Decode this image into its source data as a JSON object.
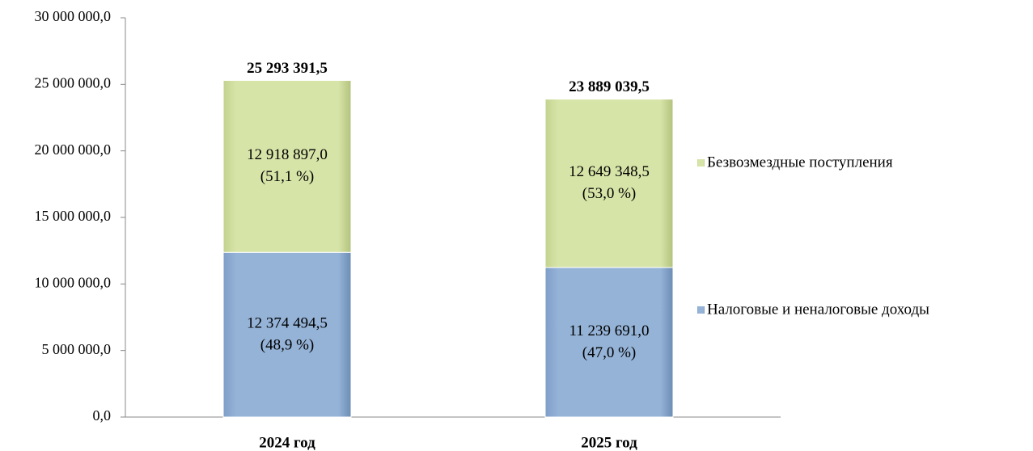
{
  "chart_data": {
    "type": "stacked_bar",
    "categories": [
      "2024 год",
      "2025 год"
    ],
    "series": [
      {
        "name": "Налоговые и неналоговые доходы",
        "color": "#95b3d7",
        "values": [
          12374494.5,
          11239691.0
        ],
        "value_labels": [
          "12 374 494,5",
          "11 239 691,0"
        ],
        "shares": [
          48.9,
          47.0
        ],
        "share_labels": [
          "(48,9 %)",
          "(47,0 %)"
        ]
      },
      {
        "name": "Безвозмездные поступления",
        "color": "#d7e4a8",
        "values": [
          12918897.0,
          12649348.5
        ],
        "value_labels": [
          "12 918 897,0",
          "12 649 348,5"
        ],
        "shares": [
          51.1,
          53.0
        ],
        "share_labels": [
          "(51,1 %)",
          "(53,0 %)"
        ]
      }
    ],
    "totals": [
      25293391.5,
      23889039.5
    ],
    "total_labels": [
      "25 293 391,5",
      "23 889 039,5"
    ],
    "ylim": [
      0,
      30000000
    ],
    "yticks": [
      {
        "value": 0,
        "label": "0,0"
      },
      {
        "value": 5000000,
        "label": "5 000 000,0"
      },
      {
        "value": 10000000,
        "label": "10 000 000,0"
      },
      {
        "value": 15000000,
        "label": "15 000 000,0"
      },
      {
        "value": 20000000,
        "label": "20 000 000,0"
      },
      {
        "value": 25000000,
        "label": "25 000 000,0"
      },
      {
        "value": 30000000,
        "label": "30 000 000,0"
      }
    ],
    "legend": "right"
  }
}
